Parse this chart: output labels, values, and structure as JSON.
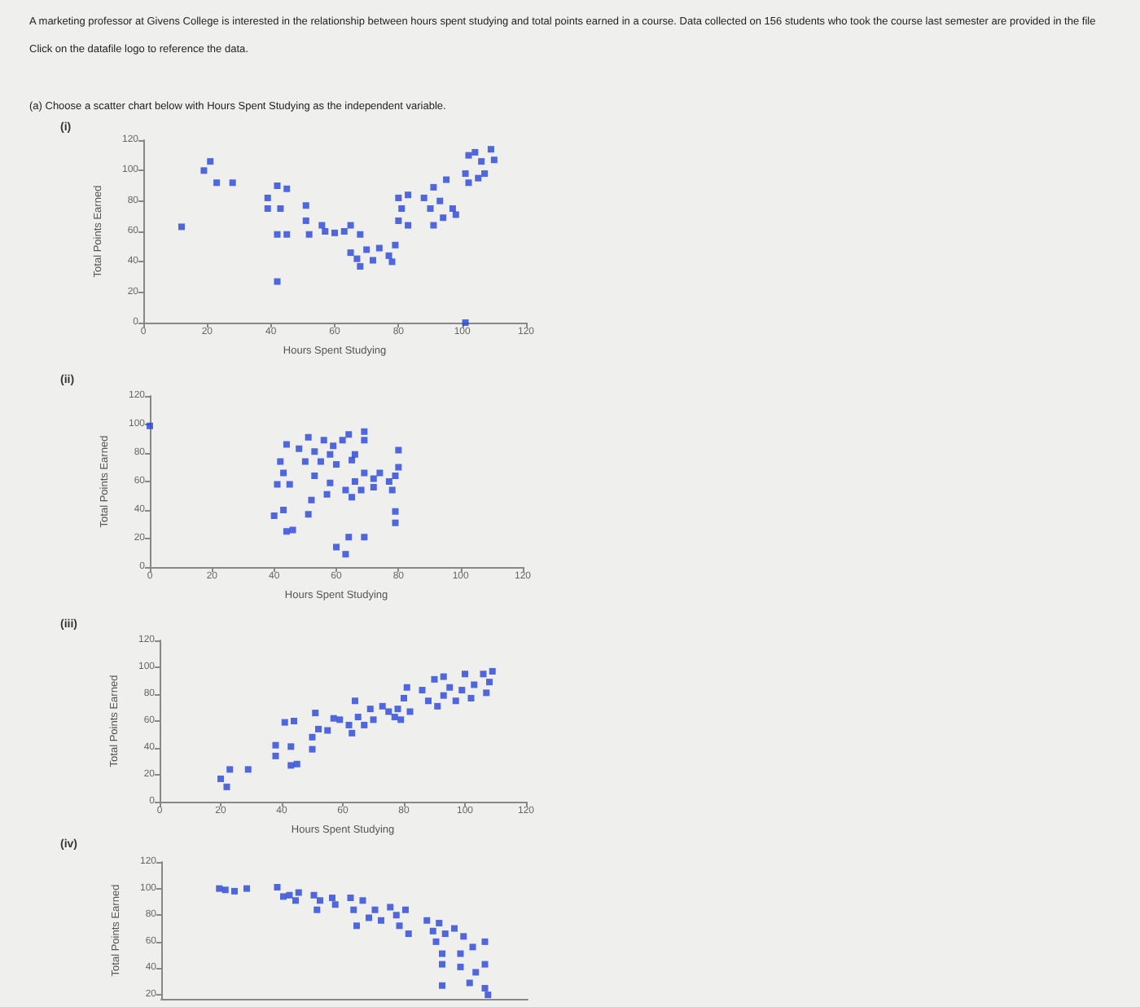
{
  "chart_data": [
    {
      "type": "scatter",
      "title": "(i)",
      "annotations": [
        "A marketing professor at Givens College is interested in the relationship between hours spent studying and total points earned in a course. Data collected on 156 students who took the course last semester are provided in the file",
        "Click on the datafile logo to reference the data.",
        "(a) Choose a scatter chart below with Hours Spent Studying as the independent variable."
      ],
      "xlabel": "Hours Spent Studying",
      "ylabel": "Total Points Earned",
      "color": "#2745d6",
      "marker": "square",
      "x": [
        19,
        21,
        23,
        28,
        12,
        42,
        101,
        39,
        39,
        42,
        45,
        43,
        42,
        45,
        51,
        51,
        52,
        56,
        57,
        60,
        63,
        65,
        68,
        65,
        67,
        68,
        70,
        72,
        74,
        77,
        78,
        79,
        80,
        81,
        83,
        80,
        83,
        88,
        90,
        91,
        93,
        95,
        94,
        97,
        98,
        91,
        101,
        102,
        104,
        106,
        107,
        109,
        110,
        102,
        105
      ],
      "values": [
        100,
        106,
        92,
        92,
        63,
        27,
        0,
        82,
        75,
        90,
        88,
        75,
        58,
        58,
        77,
        67,
        58,
        64,
        60,
        59,
        60,
        64,
        58,
        46,
        42,
        37,
        48,
        41,
        49,
        44,
        40,
        51,
        67,
        75,
        64,
        82,
        84,
        82,
        75,
        89,
        80,
        94,
        69,
        75,
        71,
        64,
        98,
        110,
        112,
        106,
        98,
        114,
        107,
        92,
        95
      ],
      "xlim": [
        0,
        120
      ],
      "xticks": [
        0,
        20,
        40,
        60,
        80,
        100,
        120
      ],
      "ylim": [
        0,
        120
      ],
      "yticks": [
        0,
        20,
        40,
        60,
        80,
        100,
        120
      ]
    },
    {
      "type": "scatter",
      "title": "(ii)",
      "xlabel": "Hours Spent Studying",
      "ylabel": "Total Points Earned",
      "color": "#2745d6",
      "marker": "square",
      "x": [
        0,
        40,
        43,
        44,
        46,
        41,
        42,
        44,
        43,
        45,
        48,
        51,
        50,
        51,
        52,
        53,
        53,
        55,
        56,
        58,
        59,
        57,
        58,
        60,
        62,
        64,
        66,
        65,
        60,
        63,
        64,
        69,
        63,
        65,
        66,
        68,
        69,
        69,
        69,
        72,
        72,
        74,
        77,
        79,
        80,
        80,
        79,
        79,
        78
      ],
      "values": [
        99,
        36,
        40,
        25,
        26,
        58,
        74,
        86,
        66,
        58,
        83,
        91,
        74,
        37,
        47,
        64,
        81,
        74,
        89,
        79,
        85,
        51,
        59,
        72,
        89,
        93,
        79,
        75,
        14,
        9,
        21,
        21,
        54,
        49,
        60,
        54,
        66,
        89,
        95,
        62,
        56,
        66,
        60,
        64,
        70,
        82,
        39,
        31,
        54
      ],
      "xlim": [
        0,
        120
      ],
      "xticks": [
        0,
        20,
        40,
        60,
        80,
        100,
        120
      ],
      "ylim": [
        0,
        120
      ],
      "yticks": [
        0,
        20,
        40,
        60,
        80,
        100,
        120
      ]
    },
    {
      "type": "scatter",
      "title": "(iii)",
      "xlabel": "Hours Spent Studying",
      "ylabel": "Total Points Earned",
      "color": "#2745d6",
      "marker": "square",
      "x": [
        20,
        22,
        23,
        29,
        38,
        38,
        41,
        43,
        43,
        44,
        45,
        50,
        50,
        51,
        52,
        55,
        57,
        59,
        62,
        63,
        64,
        65,
        67,
        69,
        70,
        73,
        75,
        77,
        78,
        79,
        80,
        81,
        82,
        86,
        88,
        90,
        91,
        93,
        93,
        95,
        97,
        99,
        100,
        102,
        103,
        106,
        108,
        109,
        107
      ],
      "values": [
        17,
        11,
        24,
        24,
        42,
        34,
        59,
        41,
        27,
        60,
        28,
        39,
        48,
        66,
        54,
        53,
        62,
        61,
        57,
        51,
        75,
        63,
        57,
        69,
        61,
        71,
        67,
        63,
        69,
        61,
        77,
        85,
        67,
        83,
        75,
        91,
        71,
        79,
        93,
        85,
        75,
        83,
        95,
        77,
        87,
        95,
        89,
        97,
        81
      ],
      "xlim": [
        0,
        120
      ],
      "xticks": [
        0,
        20,
        40,
        60,
        80,
        100,
        120
      ],
      "ylim": [
        0,
        120
      ],
      "yticks": [
        0,
        20,
        40,
        60,
        80,
        100,
        120
      ]
    },
    {
      "type": "scatter",
      "title": "(iv)",
      "ylabel": "Total Points Earned",
      "color": "#2745d6",
      "marker": "square",
      "tick_labels": "y",
      "x": [
        19,
        21,
        24,
        28,
        38,
        40,
        42,
        44,
        45,
        50,
        51,
        52,
        56,
        57,
        62,
        63,
        64,
        66,
        68,
        70,
        72,
        75,
        77,
        78,
        80,
        81,
        87,
        89,
        90,
        91,
        92,
        92,
        92,
        93,
        96,
        98,
        98,
        99,
        101,
        102,
        103,
        106,
        106,
        106,
        107
      ],
      "values": [
        100,
        99,
        98,
        100,
        101,
        94,
        95,
        91,
        97,
        95,
        84,
        91,
        93,
        88,
        93,
        84,
        72,
        91,
        78,
        84,
        76,
        86,
        80,
        72,
        84,
        66,
        76,
        68,
        60,
        74,
        51,
        43,
        27,
        66,
        70,
        51,
        41,
        64,
        29,
        56,
        37,
        60,
        43,
        25,
        20
      ],
      "xlim": [
        0,
        120
      ],
      "ylim": [
        17,
        120
      ],
      "yticks": [
        20,
        40,
        60,
        80,
        100,
        120
      ]
    }
  ]
}
